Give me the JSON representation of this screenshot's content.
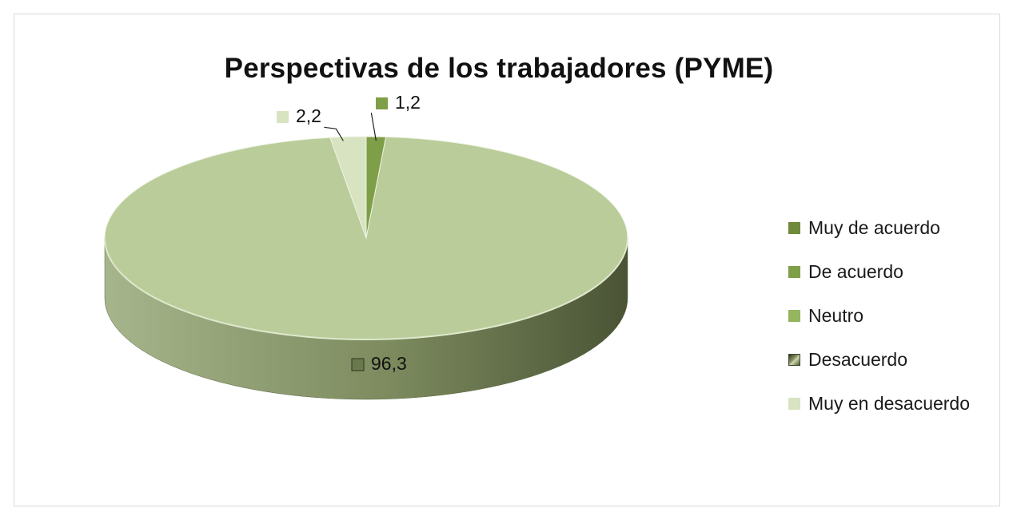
{
  "chart_data": {
    "type": "pie",
    "title": "Perspectivas de los trabajadores  (PYME)",
    "categories": [
      "Muy de acuerdo",
      "De acuerdo",
      "Neutro",
      "Desacuerdo",
      "Muy en desacuerdo"
    ],
    "values": [
      0,
      1.2,
      0,
      96.3,
      2.2
    ],
    "data_labels": [
      "",
      "1,2",
      "",
      "96,3",
      "2,2"
    ],
    "colors": [
      "#6f8a3a",
      "#7f9e48",
      "#95b55e",
      "#b9cc9a",
      "#d8e3c2"
    ],
    "side_color_dark": "#4a5435",
    "side_color_light": "#a7b58c",
    "legend_position": "right",
    "style": "3d"
  }
}
